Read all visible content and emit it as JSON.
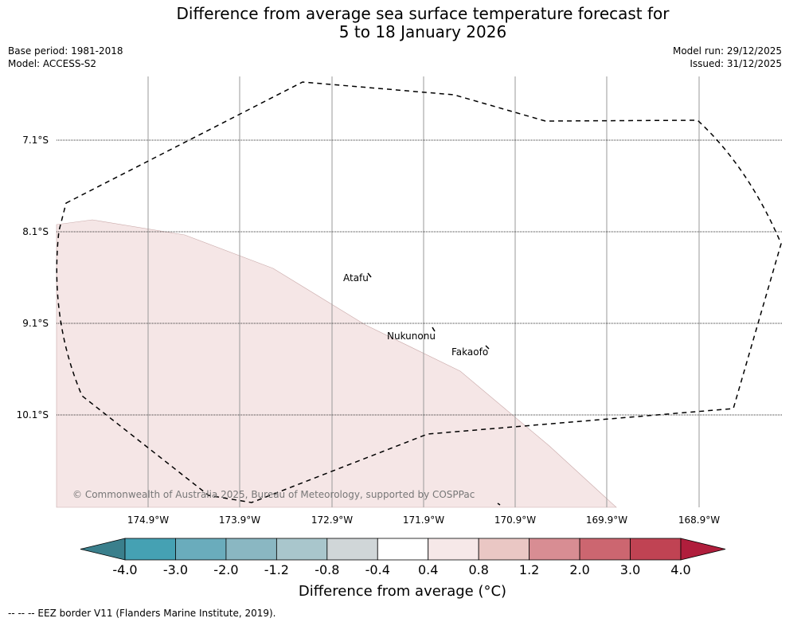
{
  "title": {
    "line1": "Difference from average sea surface temperature forecast for",
    "line2": "5 to 18 January 2026"
  },
  "meta": {
    "base_period": "Base period: 1981-2018",
    "model": "Model: ACCESS-S2",
    "model_run": "Model run: 29/12/2025",
    "issued": "Issued: 31/12/2025"
  },
  "map": {
    "lat_labels": [
      "7.1°S",
      "8.1°S",
      "9.1°S",
      "10.1°S"
    ],
    "lon_labels": [
      "174.9°W",
      "173.9°W",
      "172.9°W",
      "171.9°W",
      "170.9°W",
      "169.9°W",
      "168.9°W"
    ],
    "places": [
      "Atafu",
      "Nukunonu",
      "Fakaofo"
    ],
    "anomaly_fill_color": "#f5e6e6",
    "copyright": "© Commonwealth of Australia 2025, Bureau of Meteorology, supported by COSPPac"
  },
  "colorbar": {
    "ticks": [
      "-4.0",
      "-3.0",
      "-2.0",
      "-1.2",
      "-0.8",
      "-0.4",
      "0.4",
      "0.8",
      "1.2",
      "2.0",
      "3.0",
      "4.0"
    ],
    "colors": [
      "#3a7f8c",
      "#45a1b3",
      "#6aacbc",
      "#8ab7c2",
      "#a9c6cc",
      "#d0d6d8",
      "#ffffff",
      "#f6e8e8",
      "#eac7c4",
      "#d88d93",
      "#cc6670",
      "#c04353",
      "#b01e3c"
    ],
    "label": "Difference from average (°C)"
  },
  "footer": "--  --  -- EEZ border V11 (Flanders Marine Institute, 2019)."
}
